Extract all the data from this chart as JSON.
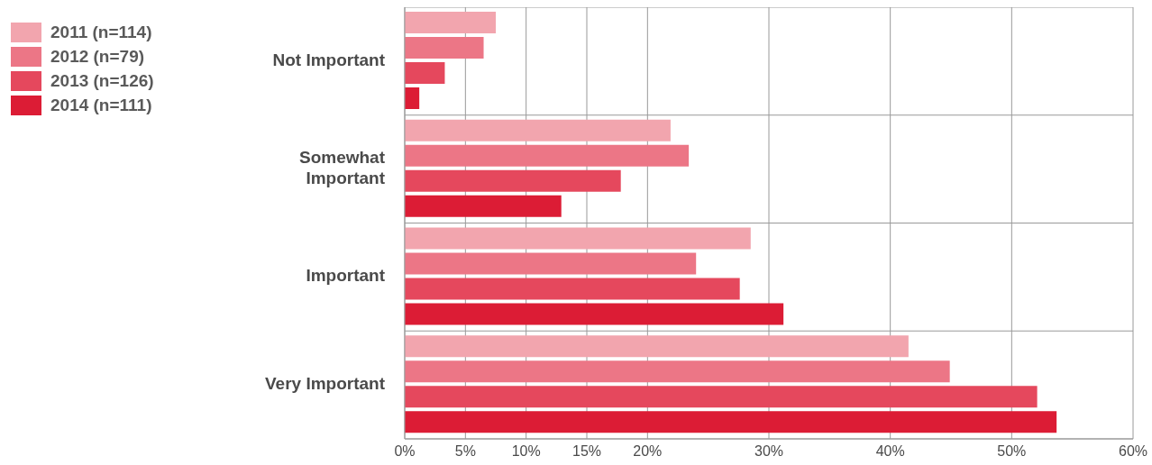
{
  "chart_data": {
    "type": "bar",
    "orientation": "horizontal",
    "categories": [
      "Not Important",
      "Somewhat Important",
      "Important",
      "Very Important"
    ],
    "series": [
      {
        "name": "2011 (n=114)",
        "color": "#f2a5ae",
        "values": [
          7.5,
          21.9,
          28.5,
          41.5
        ]
      },
      {
        "name": "2012 (n=79)",
        "color": "#ec7686",
        "values": [
          6.5,
          23.4,
          24,
          44.9
        ]
      },
      {
        "name": "2013 (n=126)",
        "color": "#e5485d",
        "values": [
          3.3,
          17.8,
          27.6,
          52.1
        ]
      },
      {
        "name": "2014 (n=111)",
        "color": "#dc1c35",
        "values": [
          1.2,
          12.9,
          31.2,
          53.7
        ]
      }
    ],
    "xlim": [
      0,
      60
    ],
    "xticks": [
      {
        "value": 0,
        "label": "0%"
      },
      {
        "value": 5,
        "label": "5%"
      },
      {
        "value": 10,
        "label": "10%"
      },
      {
        "value": 15,
        "label": "15%"
      },
      {
        "value": 20,
        "label": "20%"
      },
      {
        "value": 30,
        "label": "30%"
      },
      {
        "value": 40,
        "label": "40%"
      },
      {
        "value": 50,
        "label": "50%"
      },
      {
        "value": 60,
        "label": "60%"
      }
    ],
    "grid": true,
    "legend": "top left"
  }
}
